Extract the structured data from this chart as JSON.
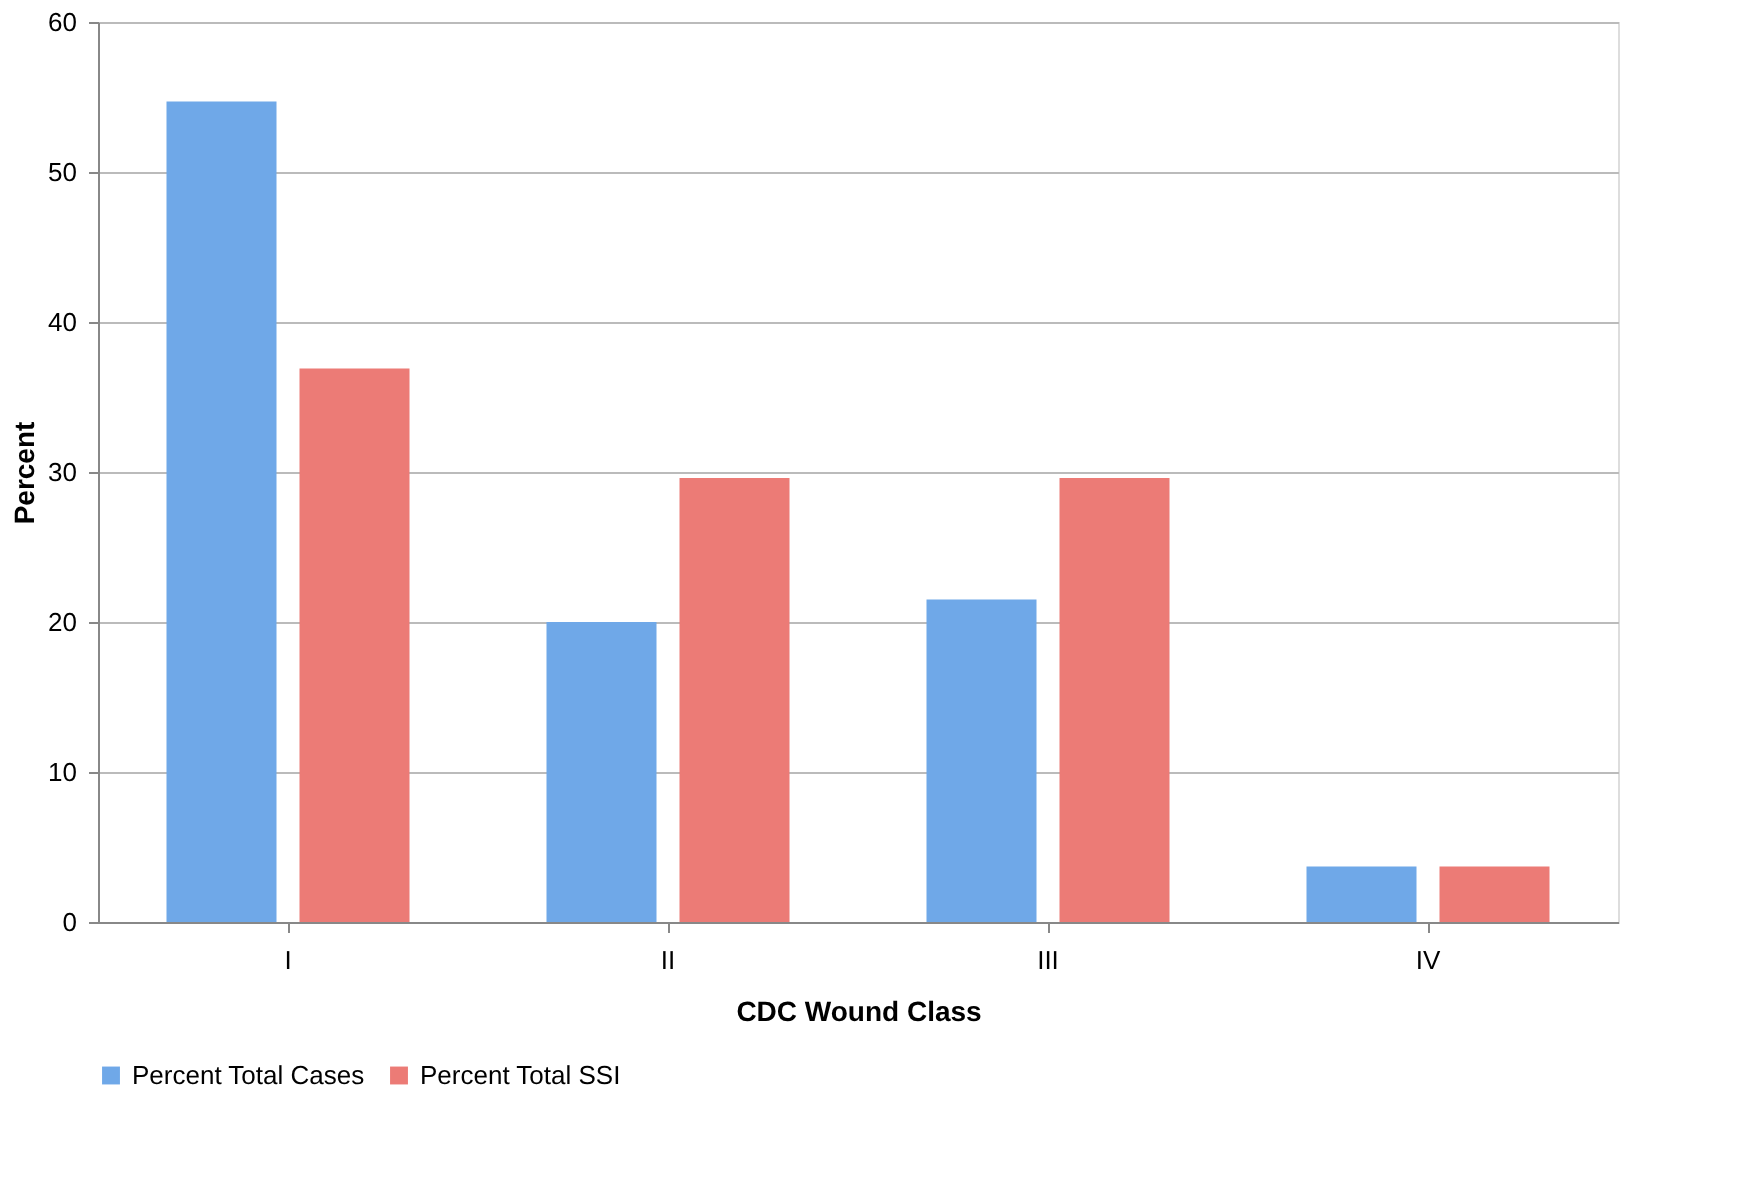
{
  "chart_data": {
    "type": "bar",
    "xlabel": "CDC Wound Class",
    "ylabel": "Percent",
    "categories": [
      "I",
      "II",
      "III",
      "IV"
    ],
    "series": [
      {
        "name": "Percent Total Cases",
        "color": "#6fa8e8",
        "values": [
          54.7,
          20.0,
          21.5,
          3.7
        ]
      },
      {
        "name": "Percent Total SSI",
        "color": "#ec7b76",
        "values": [
          36.9,
          29.6,
          29.6,
          3.7
        ]
      }
    ],
    "ylim": [
      0,
      60
    ],
    "yticks": [
      0,
      10,
      20,
      30,
      40,
      50,
      60
    ],
    "grid": "y",
    "legend": "bottom"
  }
}
